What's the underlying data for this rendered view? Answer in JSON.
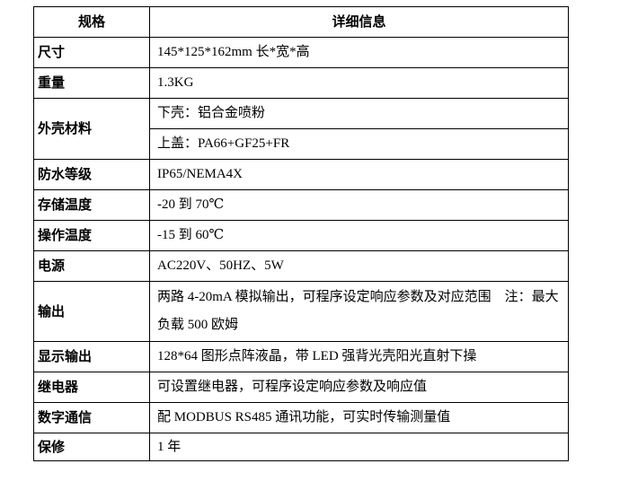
{
  "headers": [
    "规格",
    "详细信息"
  ],
  "rows": [
    {
      "key": "尺寸",
      "value": "145*125*162mm 长*宽*高"
    },
    {
      "key": "重量",
      "value": "1.3KG"
    },
    {
      "key": "外壳材料",
      "values": [
        "下壳：铝合金喷粉",
        "上盖：PA66+GF25+FR"
      ]
    },
    {
      "key": "防水等级",
      "value": "IP65/NEMA4X"
    },
    {
      "key": "存储温度",
      "value": "-20 到 70℃"
    },
    {
      "key": "操作温度",
      "value": "-15 到 60℃"
    },
    {
      "key": "电源",
      "value": "AC220V、50HZ、5W"
    },
    {
      "key": "输出",
      "value": "两路 4-20mA 模拟输出，可程序设定响应参数及对应范围　注：最大负载 500 欧姆"
    },
    {
      "key": "显示输出",
      "value": "128*64 图形点阵液晶，带 LED 强背光壳阳光直射下操"
    },
    {
      "key": "继电器",
      "value": "可设置继电器，可程序设定响应参数及响应值"
    },
    {
      "key": "数字通信",
      "value": "配 MODBUS RS485 通讯功能，可实时传输测量值"
    },
    {
      "key": "保修",
      "value": "1 年"
    }
  ]
}
